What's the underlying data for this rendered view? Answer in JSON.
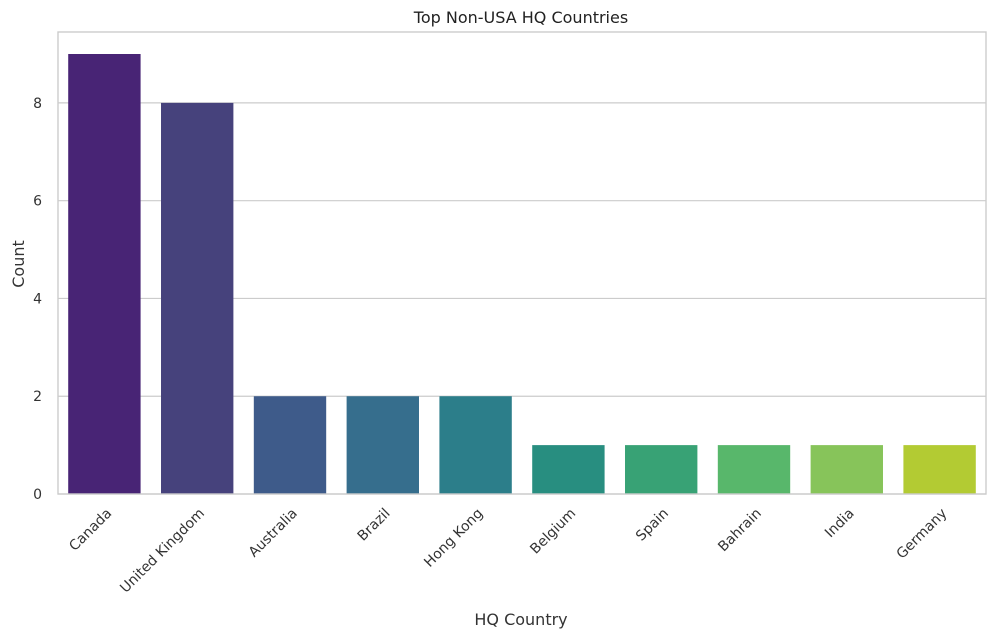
{
  "chart_data": {
    "type": "bar",
    "title": "Top Non-USA HQ Countries",
    "xlabel": "HQ Country",
    "ylabel": "Count",
    "categories": [
      "Canada",
      "United Kingdom",
      "Australia",
      "Brazil",
      "Hong Kong",
      "Belgium",
      "Spain",
      "Bahrain",
      "India",
      "Germany"
    ],
    "values": [
      9,
      8,
      2,
      2,
      2,
      1,
      1,
      1,
      1,
      1
    ],
    "colors": [
      "#482475",
      "#46427c",
      "#3e5b8a",
      "#366e8d",
      "#2c7e8a",
      "#288e80",
      "#38a275",
      "#58b76b",
      "#87c45a",
      "#b3cb33"
    ],
    "ylim": [
      0,
      9.45
    ],
    "yticks": [
      0,
      2,
      4,
      6,
      8
    ],
    "grid": "horizontal"
  }
}
